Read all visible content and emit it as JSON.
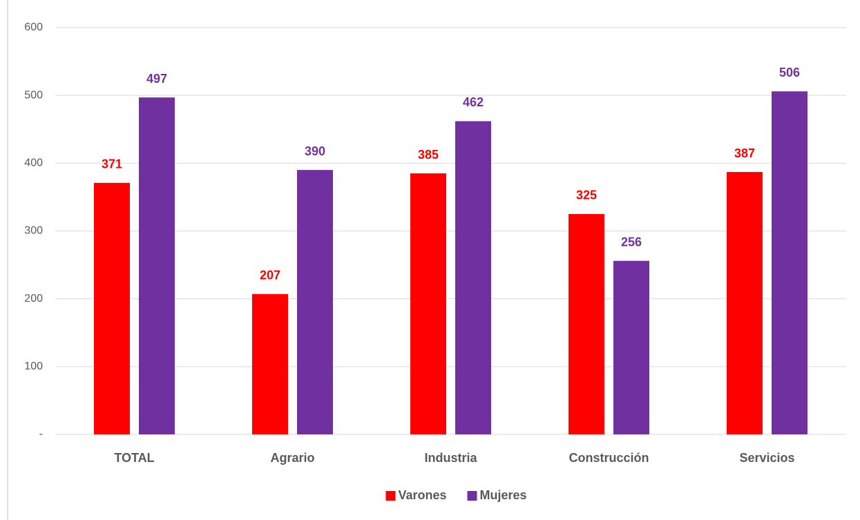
{
  "chart_data": {
    "type": "bar",
    "categories": [
      "TOTAL",
      "Agrario",
      "Industria",
      "Construcción",
      "Servicios"
    ],
    "series": [
      {
        "name": "Varones",
        "color": "#ff0000",
        "values": [
          371,
          207,
          385,
          325,
          387
        ]
      },
      {
        "name": "Mujeres",
        "color": "#7030a0",
        "values": [
          497,
          390,
          462,
          256,
          506
        ]
      }
    ],
    "ylim": [
      0,
      600
    ],
    "yticks": [
      {
        "value": 0,
        "label": "-"
      },
      100,
      200,
      300,
      400,
      500,
      600
    ],
    "grid": true,
    "legend": "bottom"
  }
}
